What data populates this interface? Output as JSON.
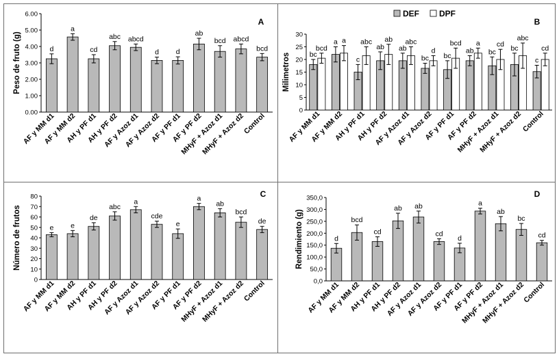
{
  "categories": [
    "AF y MM d1",
    "AF y MM d2",
    "AH y PF d1",
    "AH y PF d2",
    "AF y Azoz d1",
    "AF y Azoz d2",
    "AF y PF d1",
    "AF y PF d2",
    "MHyF + Azoz d1",
    "MHyF + Azoz d2",
    "Control"
  ],
  "colors": {
    "bar_gray": "#b9b9b9",
    "bar_white": "#ffffff",
    "stroke": "#000000",
    "border": "#6e6e6e"
  },
  "chart_data": [
    {
      "panel": "A",
      "type": "bar",
      "ylabel": "Peso de fruto (g)",
      "ylim": [
        0,
        6
      ],
      "ticks": [
        0,
        1,
        2,
        3,
        4,
        5,
        6
      ],
      "tick_labels": [
        "0.00",
        "1.00",
        "2.00",
        "3.00",
        "4.00",
        "5.00",
        "6.00"
      ],
      "series": [
        {
          "name": "Peso de fruto",
          "color": "#b9b9b9",
          "values": [
            3.25,
            4.58,
            3.25,
            4.05,
            3.95,
            3.15,
            3.15,
            4.15,
            3.7,
            3.85,
            3.35
          ],
          "errors": [
            0.3,
            0.2,
            0.25,
            0.25,
            0.2,
            0.2,
            0.22,
            0.35,
            0.35,
            0.3,
            0.22
          ],
          "letters": [
            "d",
            "a",
            "cd",
            "abc",
            "abcd",
            "d",
            "d",
            "ab",
            "bcd",
            "abcd",
            "bcd"
          ]
        }
      ]
    },
    {
      "panel": "B",
      "type": "bar",
      "ylabel": "Milimetros",
      "ylim": [
        0,
        30
      ],
      "ticks": [
        0,
        5,
        10,
        15,
        20,
        25,
        30
      ],
      "tick_labels": [
        "0",
        "5",
        "10",
        "15",
        "20",
        "25",
        "30"
      ],
      "legend": [
        "DEF",
        "DPF"
      ],
      "series": [
        {
          "name": "DEF",
          "color": "#b9b9b9",
          "values": [
            18,
            22,
            15,
            19.5,
            19.5,
            16.5,
            16,
            19.5,
            17.5,
            18,
            15.2
          ],
          "errors": [
            2.0,
            3.0,
            3.0,
            3.5,
            3.0,
            2.0,
            3.5,
            2.0,
            3.5,
            4.5,
            2.5
          ],
          "letters": [
            "bc",
            "a",
            "c",
            "ab",
            "ab",
            "bc",
            "bc",
            "ab",
            "bc",
            "bc",
            "c"
          ]
        },
        {
          "name": "DPF",
          "color": "#ffffff",
          "values": [
            20.5,
            22.5,
            21.5,
            22,
            21.5,
            19.5,
            20.5,
            22.5,
            20,
            21.5,
            20
          ],
          "errors": [
            2.0,
            3.0,
            3.5,
            4.0,
            3.5,
            2.0,
            4.0,
            2.0,
            4.0,
            5.0,
            2.5
          ],
          "letters": [
            "bcd",
            "a",
            "abc",
            "ab",
            "abc",
            "d",
            "bcd",
            "a",
            "cd",
            "abc",
            "cd"
          ]
        }
      ]
    },
    {
      "panel": "C",
      "type": "bar",
      "ylabel": "Número de frutos",
      "ylim": [
        0,
        80
      ],
      "ticks": [
        0,
        10,
        20,
        30,
        40,
        50,
        60,
        70,
        80
      ],
      "tick_labels": [
        "0",
        "10",
        "20",
        "30",
        "40",
        "50",
        "60",
        "70",
        "80"
      ],
      "series": [
        {
          "name": "Número de frutos",
          "color": "#b9b9b9",
          "values": [
            43,
            44,
            51,
            61,
            67,
            53,
            44,
            70,
            64,
            55,
            48
          ],
          "errors": [
            2,
            3,
            3.5,
            4,
            3,
            3,
            4.5,
            3,
            4,
            5,
            3
          ],
          "letters": [
            "e",
            "e",
            "de",
            "abc",
            "a",
            "cde",
            "e",
            "a",
            "ab",
            "bcd",
            "de"
          ]
        }
      ]
    },
    {
      "panel": "D",
      "type": "bar",
      "ylabel": "Rendimiento (g)",
      "ylim": [
        0,
        350
      ],
      "ticks": [
        0,
        50,
        100,
        150,
        200,
        250,
        300,
        350
      ],
      "tick_labels": [
        "0,0",
        "50,0",
        "100,0",
        "150,0",
        "200,0",
        "250,0",
        "300,0",
        "350,0"
      ],
      "series": [
        {
          "name": "Rendimiento",
          "color": "#b9b9b9",
          "values": [
            137,
            203,
            165,
            252,
            268,
            165,
            138,
            293,
            240,
            216,
            160
          ],
          "errors": [
            20,
            32,
            20,
            32,
            25,
            12,
            20,
            12,
            30,
            25,
            10
          ],
          "letters": [
            "d",
            "bcd",
            "cd",
            "ab",
            "ab",
            "cd",
            "d",
            "a",
            "ab",
            "bc",
            "cd"
          ]
        }
      ]
    }
  ]
}
